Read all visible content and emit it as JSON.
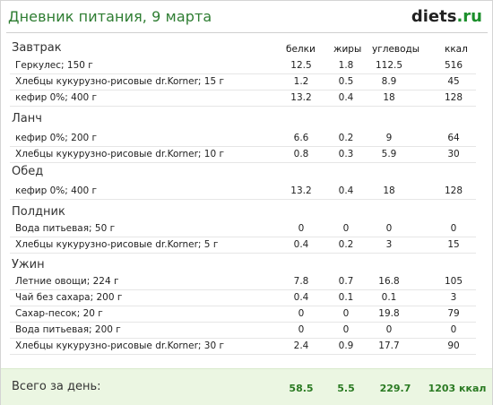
{
  "header": {
    "title": "Дневник питания, 9 марта",
    "logo_main": "diets",
    "logo_tld": ".ru"
  },
  "columns": {
    "protein": "белки",
    "fat": "жиры",
    "carbs": "углеводы",
    "kcal": "ккал"
  },
  "meals": [
    {
      "name": "Завтрак",
      "rows": [
        {
          "food": "Геркулес; 150 г",
          "protein": "12.5",
          "fat": "1.8",
          "carbs": "112.5",
          "kcal": "516"
        },
        {
          "food": "Хлебцы кукурузно-рисовые dr.Korner; 15 г",
          "protein": "1.2",
          "fat": "0.5",
          "carbs": "8.9",
          "kcal": "45"
        },
        {
          "food": "кефир 0%; 400 г",
          "protein": "13.2",
          "fat": "0.4",
          "carbs": "18",
          "kcal": "128"
        }
      ]
    },
    {
      "name": "Ланч",
      "rows": [
        {
          "food": "кефир 0%; 200 г",
          "protein": "6.6",
          "fat": "0.2",
          "carbs": "9",
          "kcal": "64"
        },
        {
          "food": "Хлебцы кукурузно-рисовые dr.Korner; 10 г",
          "protein": "0.8",
          "fat": "0.3",
          "carbs": "5.9",
          "kcal": "30"
        }
      ]
    },
    {
      "name": "Обед",
      "rows": [
        {
          "food": "кефир 0%; 400 г",
          "protein": "13.2",
          "fat": "0.4",
          "carbs": "18",
          "kcal": "128"
        }
      ]
    },
    {
      "name": "Полдник",
      "rows": [
        {
          "food": "Вода питьевая; 50 г",
          "protein": "0",
          "fat": "0",
          "carbs": "0",
          "kcal": "0"
        },
        {
          "food": "Хлебцы кукурузно-рисовые dr.Korner; 5 г",
          "protein": "0.4",
          "fat": "0.2",
          "carbs": "3",
          "kcal": "15"
        }
      ]
    },
    {
      "name": "Ужин",
      "rows": [
        {
          "food": "Летние овощи; 224 г",
          "protein": "7.8",
          "fat": "0.7",
          "carbs": "16.8",
          "kcal": "105"
        },
        {
          "food": "Чай без сахара; 200 г",
          "protein": "0.4",
          "fat": "0.1",
          "carbs": "0.1",
          "kcal": "3"
        },
        {
          "food": "Сахар-песок; 20 г",
          "protein": "0",
          "fat": "0",
          "carbs": "19.8",
          "kcal": "79"
        },
        {
          "food": "Вода питьевая; 200 г",
          "protein": "0",
          "fat": "0",
          "carbs": "0",
          "kcal": "0"
        },
        {
          "food": "Хлебцы кукурузно-рисовые dr.Korner; 30 г",
          "protein": "2.4",
          "fat": "0.9",
          "carbs": "17.7",
          "kcal": "90"
        }
      ]
    }
  ],
  "total": {
    "label": "Всего за день:",
    "protein": "58.5",
    "fat": "5.5",
    "carbs": "229.7",
    "kcal": "1203 ккал"
  }
}
